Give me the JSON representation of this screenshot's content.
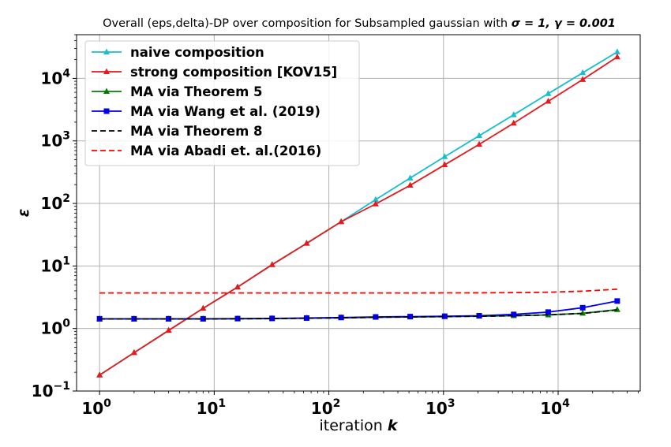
{
  "chart_data": {
    "type": "line",
    "title": "Overall (eps,delta)-DP over composition for Subsampled gaussian with σ = 1, γ = 0.001",
    "title_parts": {
      "prefix": "Overall (eps,delta)-DP over composition for Subsampled gaussian with ",
      "sigma": "σ = 1, ",
      "gamma": "γ = 0.001"
    },
    "xlabel": "iteration",
    "xlabel_var": "k",
    "ylabel": "ε",
    "xscale": "log",
    "yscale": "log",
    "xlim": [
      0.63,
      52000
    ],
    "ylim": [
      0.1,
      50000
    ],
    "grid": true,
    "legend_position": "top-left",
    "x_ticks": [
      {
        "base": "10",
        "exp": "0",
        "value": 1
      },
      {
        "base": "10",
        "exp": "1",
        "value": 10
      },
      {
        "base": "10",
        "exp": "2",
        "value": 100
      },
      {
        "base": "10",
        "exp": "3",
        "value": 1000
      },
      {
        "base": "10",
        "exp": "4",
        "value": 10000
      }
    ],
    "y_ticks": [
      {
        "base": "10",
        "exp": "−1",
        "value": 0.1
      },
      {
        "base": "10",
        "exp": "0",
        "value": 1
      },
      {
        "base": "10",
        "exp": "1",
        "value": 10
      },
      {
        "base": "10",
        "exp": "2",
        "value": 100
      },
      {
        "base": "10",
        "exp": "3",
        "value": 1000
      },
      {
        "base": "10",
        "exp": "4",
        "value": 10000
      }
    ],
    "x": [
      1,
      2,
      4,
      8,
      16,
      32,
      64,
      128,
      256,
      512,
      1024,
      2048,
      4096,
      8192,
      16384,
      32768
    ],
    "series": [
      {
        "name": "naive composition",
        "color": "#17becf",
        "marker": "triangle",
        "dash": "solid",
        "values": [
          0.18,
          0.41,
          0.93,
          2.1,
          4.6,
          10.5,
          23,
          51,
          115,
          255,
          560,
          1210,
          2620,
          5700,
          12300,
          26500
        ]
      },
      {
        "name": "strong composition [KOV15]",
        "color": "#e41a1c",
        "marker": "triangle",
        "dash": "solid",
        "values": [
          0.18,
          0.41,
          0.93,
          2.1,
          4.6,
          10.5,
          23,
          51,
          98,
          195,
          415,
          880,
          1920,
          4300,
          9600,
          22000
        ]
      },
      {
        "name": "MA via Theorem 5",
        "color": "#008000",
        "marker": "triangle",
        "dash": "solid",
        "values": [
          1.42,
          1.42,
          1.42,
          1.42,
          1.43,
          1.44,
          1.46,
          1.48,
          1.51,
          1.53,
          1.55,
          1.57,
          1.6,
          1.65,
          1.75,
          2.0
        ]
      },
      {
        "name": "MA via Wang et al. (2019)",
        "color": "#0000ee",
        "marker": "square",
        "dash": "solid",
        "values": [
          1.43,
          1.43,
          1.43,
          1.43,
          1.44,
          1.45,
          1.47,
          1.5,
          1.53,
          1.55,
          1.57,
          1.6,
          1.68,
          1.83,
          2.15,
          2.75
        ]
      },
      {
        "name": "MA via Theorem 8",
        "color": "#000000",
        "marker": "none",
        "dash": "dashed",
        "values": [
          1.42,
          1.42,
          1.42,
          1.42,
          1.43,
          1.44,
          1.46,
          1.48,
          1.51,
          1.53,
          1.55,
          1.57,
          1.6,
          1.65,
          1.74,
          1.98
        ]
      },
      {
        "name": "MA via Abadi et. al.(2016)",
        "color": "#ff0000",
        "marker": "none",
        "dash": "dashed",
        "values": [
          3.7,
          3.7,
          3.7,
          3.7,
          3.7,
          3.7,
          3.7,
          3.7,
          3.7,
          3.7,
          3.71,
          3.72,
          3.75,
          3.8,
          3.95,
          4.25
        ]
      }
    ]
  }
}
